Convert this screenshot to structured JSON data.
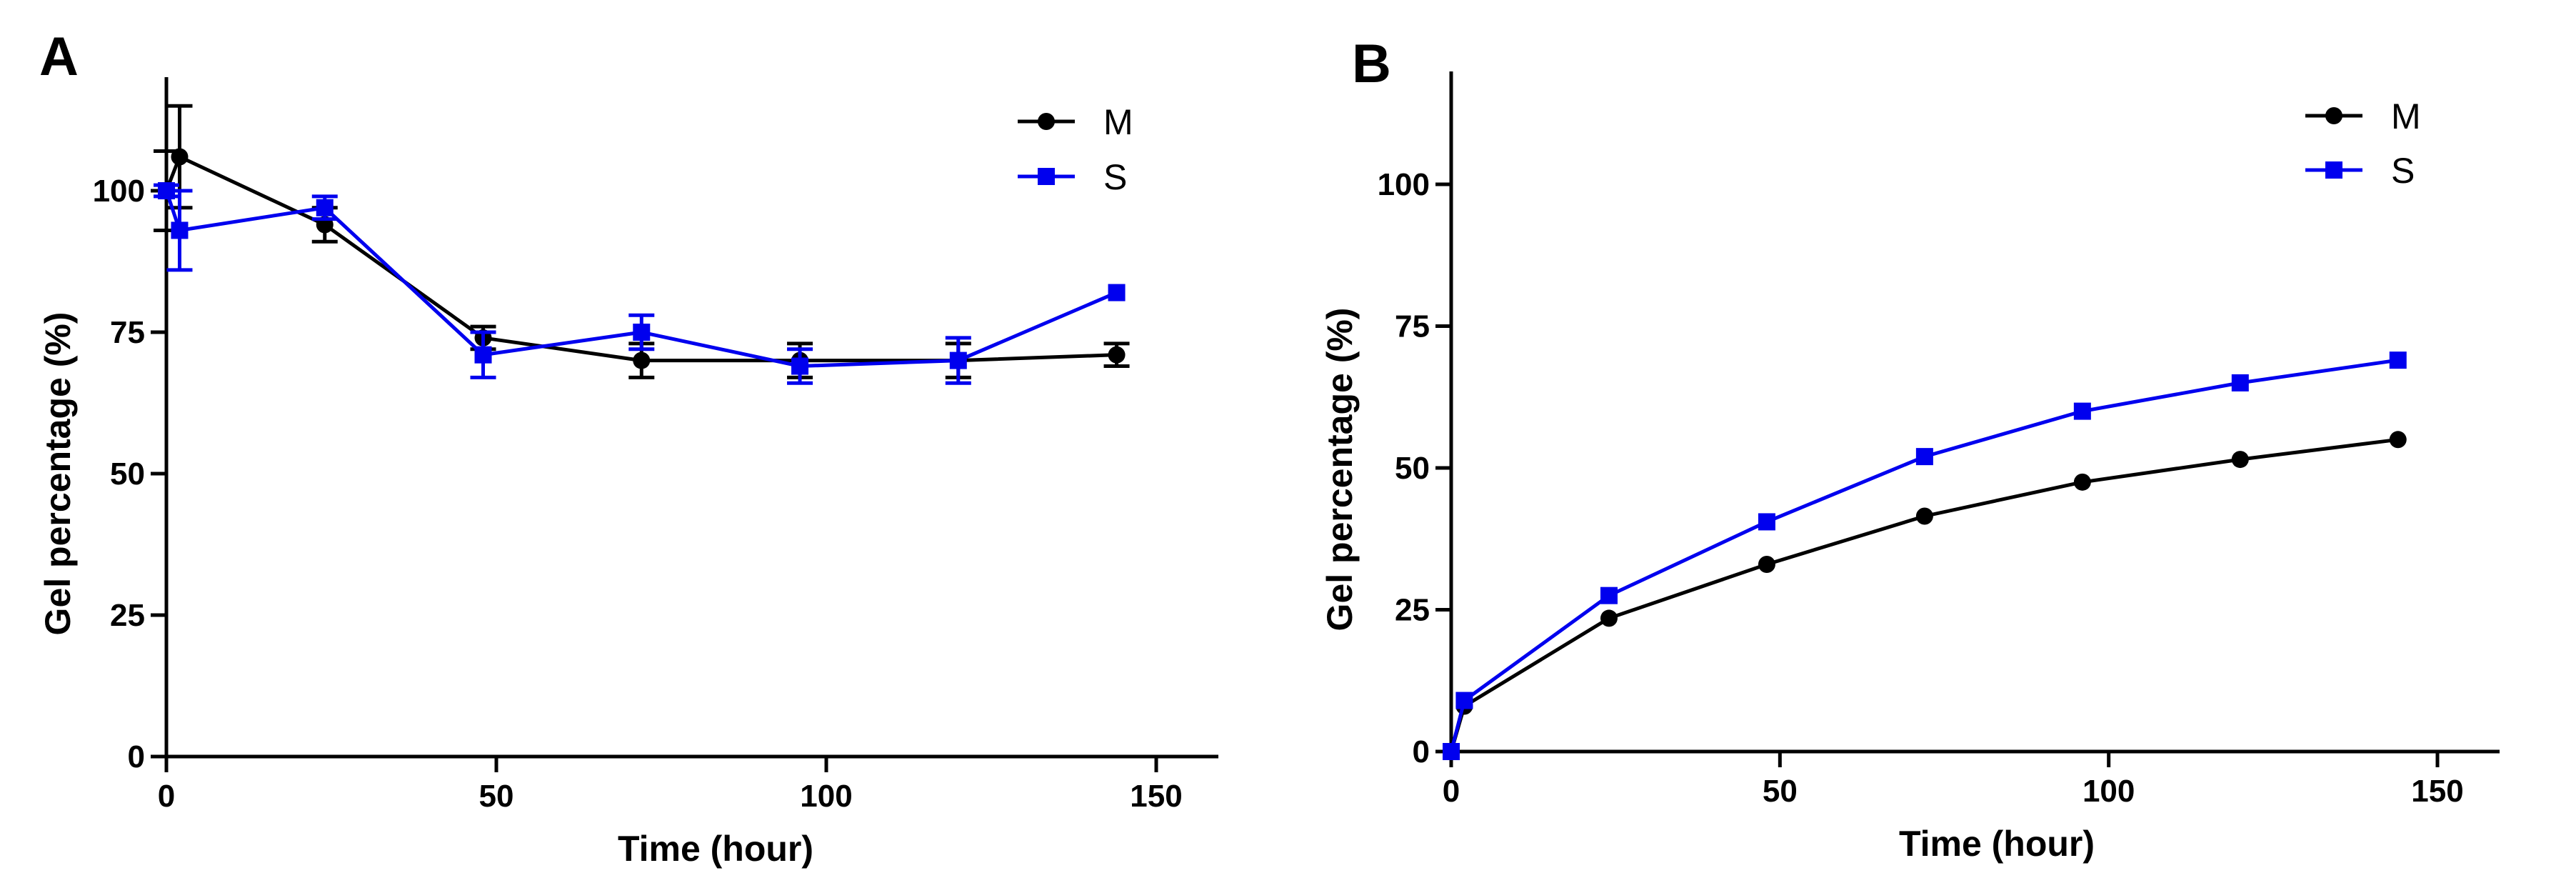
{
  "colors": {
    "M": "#000000",
    "S": "#0000ee",
    "axis": "#000000"
  },
  "chart_data": [
    {
      "panel": "A",
      "type": "line",
      "xlabel": "Time (hour)",
      "ylabel": "Gel percentage (%)",
      "xlim": [
        0,
        160
      ],
      "ylim": [
        0,
        120
      ],
      "xticks": [
        0,
        50,
        100,
        150
      ],
      "yticks": [
        0,
        25,
        50,
        75,
        100
      ],
      "grid": false,
      "legend_position": "top-right",
      "series": [
        {
          "name": "M",
          "marker": "circle",
          "color": "#000000",
          "x": [
            0,
            2,
            24,
            48,
            72,
            96,
            120,
            144
          ],
          "y": [
            100,
            106,
            94,
            74,
            70,
            70,
            70,
            71
          ],
          "err": [
            7,
            9,
            3,
            2,
            3,
            3,
            3,
            2
          ]
        },
        {
          "name": "S",
          "marker": "square",
          "color": "#0000ee",
          "x": [
            0,
            2,
            24,
            48,
            72,
            96,
            120,
            144
          ],
          "y": [
            100,
            93,
            97,
            71,
            75,
            69,
            70,
            82
          ],
          "err": [
            1,
            7,
            2,
            4,
            3,
            3,
            4,
            0
          ]
        }
      ]
    },
    {
      "panel": "B",
      "type": "line",
      "xlabel": "Time (hour)",
      "ylabel": "Gel percentage (%)",
      "xlim": [
        0,
        160
      ],
      "ylim": [
        0,
        120
      ],
      "xticks": [
        0,
        50,
        100,
        150
      ],
      "yticks": [
        0,
        25,
        50,
        75,
        100
      ],
      "grid": false,
      "legend_position": "top-right",
      "series": [
        {
          "name": "M",
          "marker": "circle",
          "color": "#000000",
          "x": [
            0,
            2,
            24,
            48,
            72,
            96,
            120,
            144
          ],
          "y": [
            0,
            8,
            23.5,
            33,
            41.5,
            47.5,
            51.5,
            55
          ],
          "err": [
            0,
            0,
            0,
            0,
            0,
            0,
            0,
            0
          ]
        },
        {
          "name": "S",
          "marker": "square",
          "color": "#0000ee",
          "x": [
            0,
            2,
            24,
            48,
            72,
            96,
            120,
            144
          ],
          "y": [
            0,
            9,
            27.5,
            40.5,
            52,
            60,
            65,
            69
          ],
          "err": [
            0,
            0,
            0,
            0,
            0,
            0,
            0,
            0
          ]
        }
      ]
    }
  ]
}
